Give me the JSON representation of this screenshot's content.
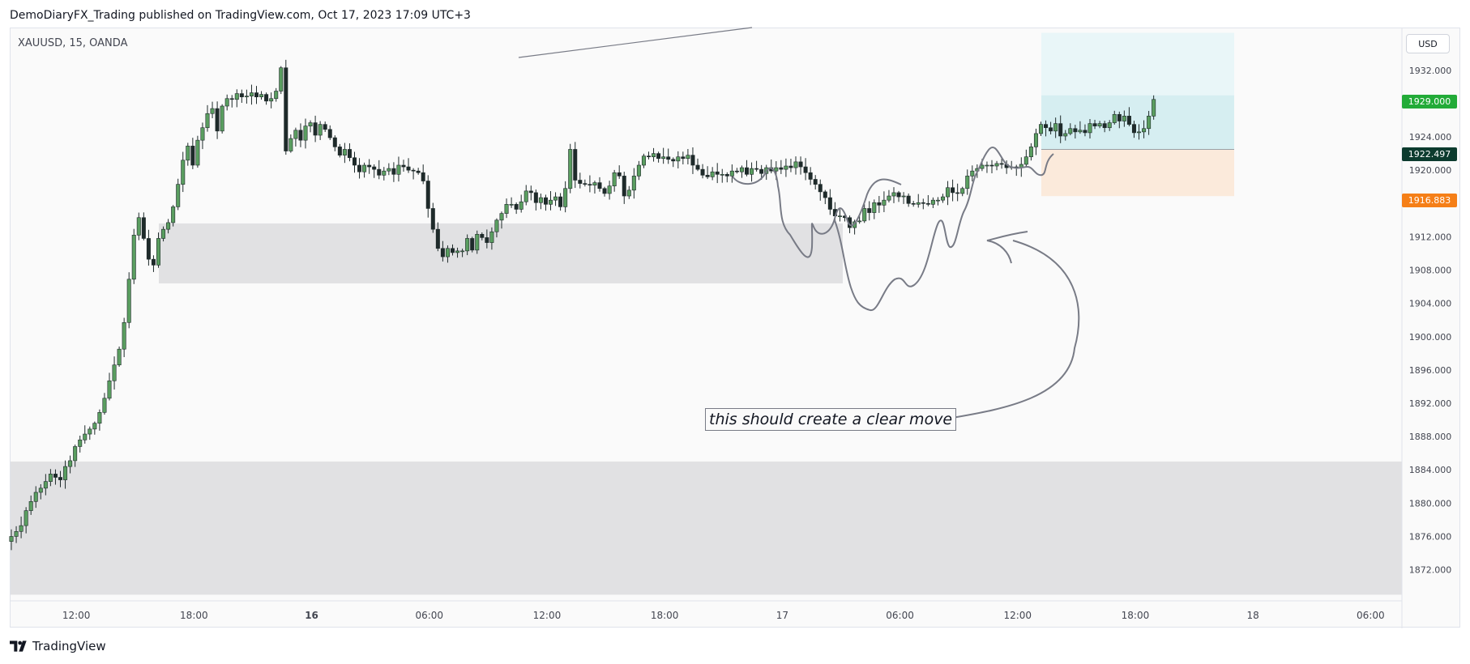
{
  "header": {
    "publisher_line": "DemoDiaryFX_Trading published on TradingView.com, Oct 17, 2023 17:09 UTC+3"
  },
  "symbol": {
    "label": "XAUUSD, 15, OANDA"
  },
  "currency": {
    "label": "USD"
  },
  "price_tags": {
    "target": "1929.000",
    "entry": "1922.497",
    "stop": "1916.883"
  },
  "annotation": {
    "text": "this should create a clear move"
  },
  "footer": {
    "brand": "TradingView"
  },
  "colors": {
    "up_candle": "#5a9e60",
    "down_candle": "#1e2a2a",
    "zone": "#e1e1e3",
    "target_zone": "#d6eef1",
    "target_zone_light": "#e9f6f8",
    "stop_zone": "#fbeadb",
    "drawing": "#787b86",
    "target_tag": "#22ab38",
    "entry_tag": "#0c3b2e",
    "stop_tag": "#f57f17"
  },
  "chart_data": {
    "type": "candlestick",
    "symbol": "XAUUSD",
    "timeframe": "15",
    "broker": "OANDA",
    "ylim": [
      1868,
      1936
    ],
    "y_ticks": [
      1872,
      1876,
      1880,
      1884,
      1888,
      1892,
      1896,
      1900,
      1904,
      1908,
      1912,
      1916,
      1920,
      1924,
      1928,
      1932
    ],
    "y_tick_labels": [
      "1872.000",
      "1876.000",
      "1880.000",
      "1884.000",
      "1888.000",
      "1892.000",
      "1896.000",
      "1900.000",
      "1904.000",
      "1908.000",
      "1912.000",
      "1916.000",
      "1920.000",
      "1924.000",
      "1928.000",
      "1932.000"
    ],
    "x_tick_labels": [
      "12:00",
      "18:00",
      "16",
      "06:00",
      "12:00",
      "18:00",
      "17",
      "06:00",
      "12:00",
      "18:00",
      "18",
      "06:00"
    ],
    "x_tick_bold": [
      false,
      false,
      true,
      false,
      false,
      false,
      false,
      false,
      false,
      false,
      false,
      false
    ],
    "x_tick_bar_index": [
      3,
      27,
      51,
      75,
      99,
      123,
      147,
      171,
      195,
      219,
      243,
      267
    ],
    "price_path_close": [
      1876.0,
      1876.6,
      1877.3,
      1879.1,
      1880.2,
      1881.3,
      1881.8,
      1882.6,
      1883.5,
      1883.1,
      1882.8,
      1884.4,
      1885.1,
      1886.8,
      1887.6,
      1888.3,
      1888.9,
      1889.6,
      1890.9,
      1892.6,
      1894.7,
      1896.6,
      1898.5,
      1901.7,
      1906.9,
      1912.2,
      1914.3,
      1911.8,
      1909.3,
      1908.6,
      1911.8,
      1912.9,
      1913.7,
      1915.6,
      1918.3,
      1921.2,
      1922.9,
      1920.6,
      1923.6,
      1925.1,
      1926.8,
      1927.4,
      1924.7,
      1927.7,
      1928.6,
      1928.5,
      1929.2,
      1928.8,
      1928.9,
      1929.3,
      1928.8,
      1929.1,
      1928.3,
      1928.6,
      1929.5,
      1932.3,
      1922.3,
      1923.8,
      1924.8,
      1923.6,
      1925.3,
      1925.7,
      1924.2,
      1925.5,
      1924.9,
      1923.9,
      1922.8,
      1921.8,
      1922.5,
      1921.5,
      1920.6,
      1919.8,
      1920.6,
      1920.4,
      1920.1,
      1919.4,
      1919.9,
      1920.2,
      1919.5,
      1920.6,
      1920.4,
      1920.0,
      1919.9,
      1919.7,
      1918.7,
      1915.4,
      1912.9,
      1910.6,
      1909.6,
      1910.6,
      1910.1,
      1910.3,
      1910.3,
      1911.8,
      1910.4,
      1912.3,
      1911.9,
      1911.3,
      1912.6,
      1914.0,
      1914.8,
      1915.9,
      1915.9,
      1915.3,
      1916.2,
      1917.5,
      1917.3,
      1916.1,
      1916.7,
      1915.9,
      1916.4,
      1916.8,
      1915.6,
      1917.8,
      1922.5,
      1918.8,
      1918.4,
      1918.3,
      1918.2,
      1918.5,
      1917.8,
      1917.2,
      1918.1,
      1919.7,
      1919.3,
      1916.9,
      1917.6,
      1919.3,
      1920.6,
      1921.7,
      1921.6,
      1922.0,
      1921.4,
      1921.6,
      1921.3,
      1921.1,
      1921.6,
      1921.4,
      1921.8,
      1920.6,
      1920.1,
      1919.4,
      1919.2,
      1919.8,
      1919.5,
      1919.5,
      1919.3,
      1919.9,
      1919.8,
      1920.3,
      1919.5,
      1920.2,
      1920.1,
      1919.6,
      1920.3,
      1919.9,
      1920.3,
      1920.1,
      1920.5,
      1920.3,
      1921.0,
      1920.4,
      1919.7,
      1918.9,
      1918.3,
      1917.4,
      1916.7,
      1915.3,
      1914.5,
      1914.5,
      1914.3,
      1913.1,
      1913.8,
      1913.9,
      1915.4,
      1914.9,
      1916.1,
      1915.8,
      1916.4,
      1916.9,
      1917.3,
      1916.8,
      1916.9,
      1916.0,
      1915.9,
      1916.1,
      1916.0,
      1915.9,
      1916.4,
      1916.4,
      1916.8,
      1917.9,
      1917.3,
      1917.2,
      1917.8,
      1919.3,
      1919.9,
      1920.2,
      1920.6,
      1920.6,
      1920.5,
      1920.8,
      1920.7,
      1920.3,
      1920.4,
      1920.3,
      1920.7,
      1921.6,
      1922.8,
      1924.4,
      1925.5,
      1925.1,
      1924.7,
      1925.6,
      1924.1,
      1924.4,
      1925.0,
      1924.6,
      1924.8,
      1924.5,
      1925.6,
      1925.3,
      1925.6,
      1925.1,
      1925.7,
      1926.7,
      1925.9,
      1926.5,
      1925.5,
      1924.5,
      1924.6,
      1925.0,
      1926.5,
      1928.5
    ],
    "zones": [
      {
        "name": "support-zone-upper",
        "y_top": 1913.6,
        "y_bottom": 1906.4
      },
      {
        "name": "support-zone-lower",
        "y_top": 1885.0,
        "y_bottom": 1869.0
      }
    ],
    "position": {
      "type": "long",
      "target": 1929.0,
      "entry": 1922.497,
      "stop": 1916.883,
      "box_top": 1936.5
    },
    "annotation": "this should create a clear move"
  }
}
